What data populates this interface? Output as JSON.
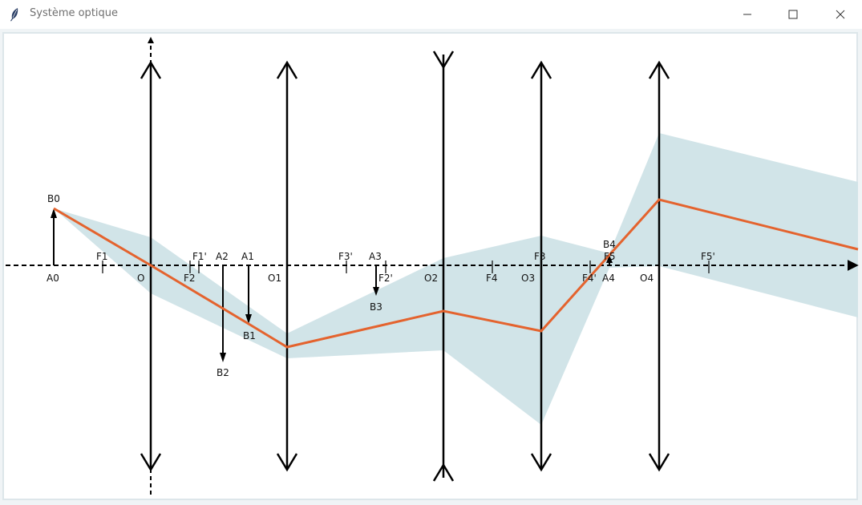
{
  "window": {
    "title": "Système optique",
    "minimize_icon": "minimize-icon",
    "maximize_icon": "maximize-icon",
    "close_icon": "close-icon",
    "app_icon": "feather-icon"
  },
  "colors": {
    "beam": "#d1e4e8",
    "ray": "#e4632e",
    "ink": "#000000"
  },
  "diagram": {
    "lenses": [
      {
        "name": "O",
        "type": "converging"
      },
      {
        "name": "O1",
        "type": "converging"
      },
      {
        "name": "O2",
        "type": "diverging"
      },
      {
        "name": "O3",
        "type": "converging"
      },
      {
        "name": "O4",
        "type": "converging"
      }
    ],
    "labels": {
      "A0": "A0",
      "B0": "B0",
      "F1": "F1",
      "O": "O",
      "F2": "F2",
      "F1p": "F1'",
      "A2": "A2",
      "A1": "A1",
      "B1": "B1",
      "B2": "B2",
      "O1": "O1",
      "F3p": "F3'",
      "A3": "A3",
      "F2p": "F2'",
      "B3": "B3",
      "O2": "O2",
      "F4": "F4",
      "F3": "F3",
      "O3": "O3",
      "B4": "B4",
      "F5": "F5",
      "F4p": "F4'",
      "A4": "A4",
      "O4": "O4",
      "F5p": "F5'"
    }
  }
}
